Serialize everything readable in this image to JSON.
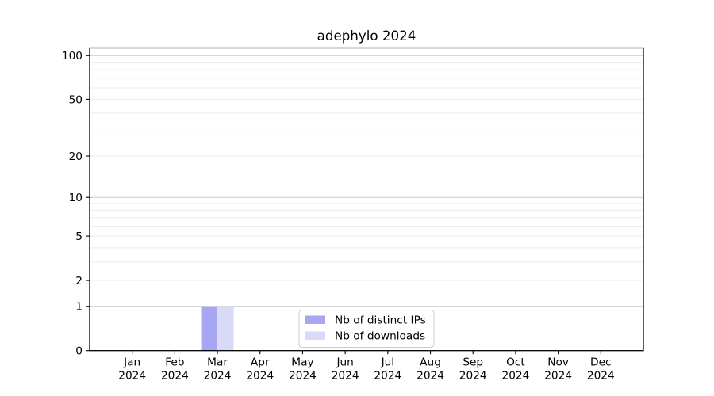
{
  "figure": {
    "background": "#ffffff"
  },
  "chart_data": {
    "type": "bar",
    "title": "adephylo 2024",
    "categories": [
      "Jan",
      "Feb",
      "Mar",
      "Apr",
      "May",
      "Jun",
      "Jul",
      "Aug",
      "Sep",
      "Oct",
      "Nov",
      "Dec"
    ],
    "category_sublabel": "2024",
    "series": [
      {
        "name": "Nb of distinct IPs",
        "color": "#a6a6f2",
        "values": [
          0,
          0,
          1,
          0,
          0,
          0,
          0,
          0,
          0,
          0,
          0,
          0
        ]
      },
      {
        "name": "Nb of downloads",
        "color": "#d9d9f8",
        "values": [
          0,
          0,
          1,
          0,
          0,
          0,
          0,
          0,
          0,
          0,
          0,
          0
        ]
      }
    ],
    "xlabel": "",
    "ylabel": "",
    "yscale": "log1p",
    "ylim": [
      0,
      113
    ],
    "yticks": [
      0,
      1,
      2,
      5,
      10,
      20,
      50,
      100
    ],
    "grid_major": [
      1,
      10,
      100
    ],
    "grid_minor": [
      2,
      3,
      4,
      5,
      6,
      7,
      8,
      9,
      20,
      30,
      40,
      50,
      60,
      70,
      80,
      90
    ],
    "legend": {
      "position": "lower-center"
    },
    "colors": {
      "axis": "#000000",
      "grid_major": "#c8c8c8",
      "grid_minor": "#ebebeb",
      "text": "#000000",
      "legend_border": "#cccccc",
      "legend_bg": "#ffffff"
    }
  }
}
